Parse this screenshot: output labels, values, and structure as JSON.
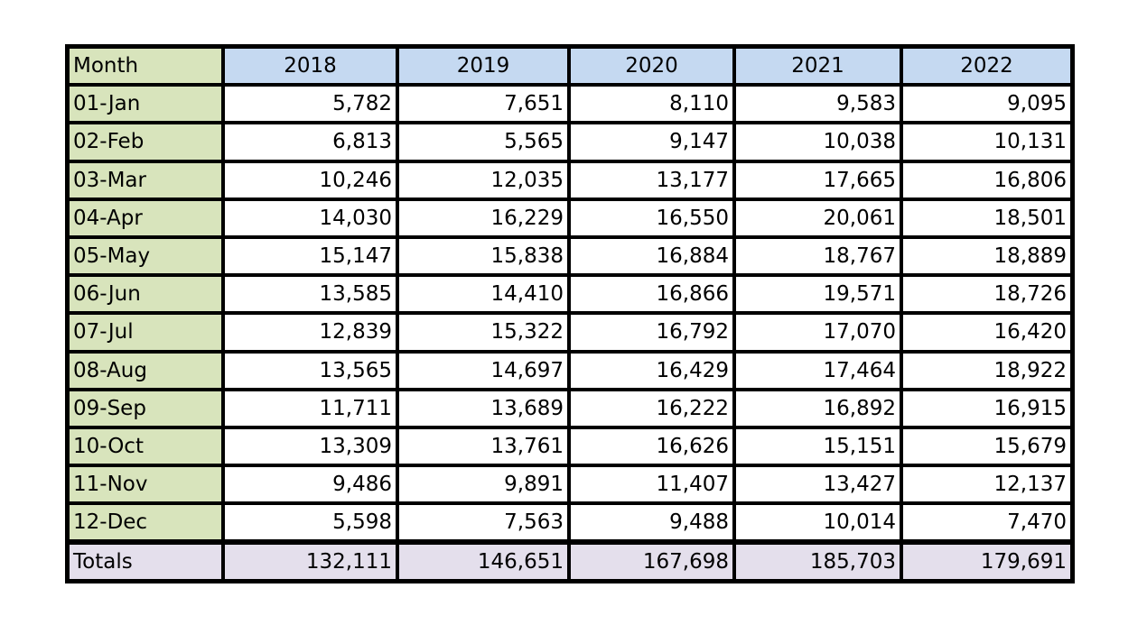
{
  "table": {
    "header": {
      "month_label": "Month",
      "years": [
        "2018",
        "2019",
        "2020",
        "2021",
        "2022"
      ]
    },
    "rows": [
      {
        "month": "01-Jan",
        "values": [
          "5,782",
          "7,651",
          "8,110",
          "9,583",
          "9,095"
        ]
      },
      {
        "month": "02-Feb",
        "values": [
          "6,813",
          "5,565",
          "9,147",
          "10,038",
          "10,131"
        ]
      },
      {
        "month": "03-Mar",
        "values": [
          "10,246",
          "12,035",
          "13,177",
          "17,665",
          "16,806"
        ]
      },
      {
        "month": "04-Apr",
        "values": [
          "14,030",
          "16,229",
          "16,550",
          "20,061",
          "18,501"
        ]
      },
      {
        "month": "05-May",
        "values": [
          "15,147",
          "15,838",
          "16,884",
          "18,767",
          "18,889"
        ]
      },
      {
        "month": "06-Jun",
        "values": [
          "13,585",
          "14,410",
          "16,866",
          "19,571",
          "18,726"
        ]
      },
      {
        "month": "07-Jul",
        "values": [
          "12,839",
          "15,322",
          "16,792",
          "17,070",
          "16,420"
        ]
      },
      {
        "month": "08-Aug",
        "values": [
          "13,565",
          "14,697",
          "16,429",
          "17,464",
          "18,922"
        ]
      },
      {
        "month": "09-Sep",
        "values": [
          "11,711",
          "13,689",
          "16,222",
          "16,892",
          "16,915"
        ]
      },
      {
        "month": "10-Oct",
        "values": [
          "13,309",
          "13,761",
          "16,626",
          "15,151",
          "15,679"
        ]
      },
      {
        "month": "11-Nov",
        "values": [
          "9,486",
          "9,891",
          "11,407",
          "13,427",
          "12,137"
        ]
      },
      {
        "month": "12-Dec",
        "values": [
          "5,598",
          "7,563",
          "9,488",
          "10,014",
          "7,470"
        ]
      }
    ],
    "totals": {
      "label": "Totals",
      "values": [
        "132,111",
        "146,651",
        "167,698",
        "185,703",
        "179,691"
      ]
    },
    "colors": {
      "month_column": "#d8e4bc",
      "year_header": "#c5d9f1",
      "totals_row": "#e4dfec",
      "border": "#000000"
    }
  }
}
